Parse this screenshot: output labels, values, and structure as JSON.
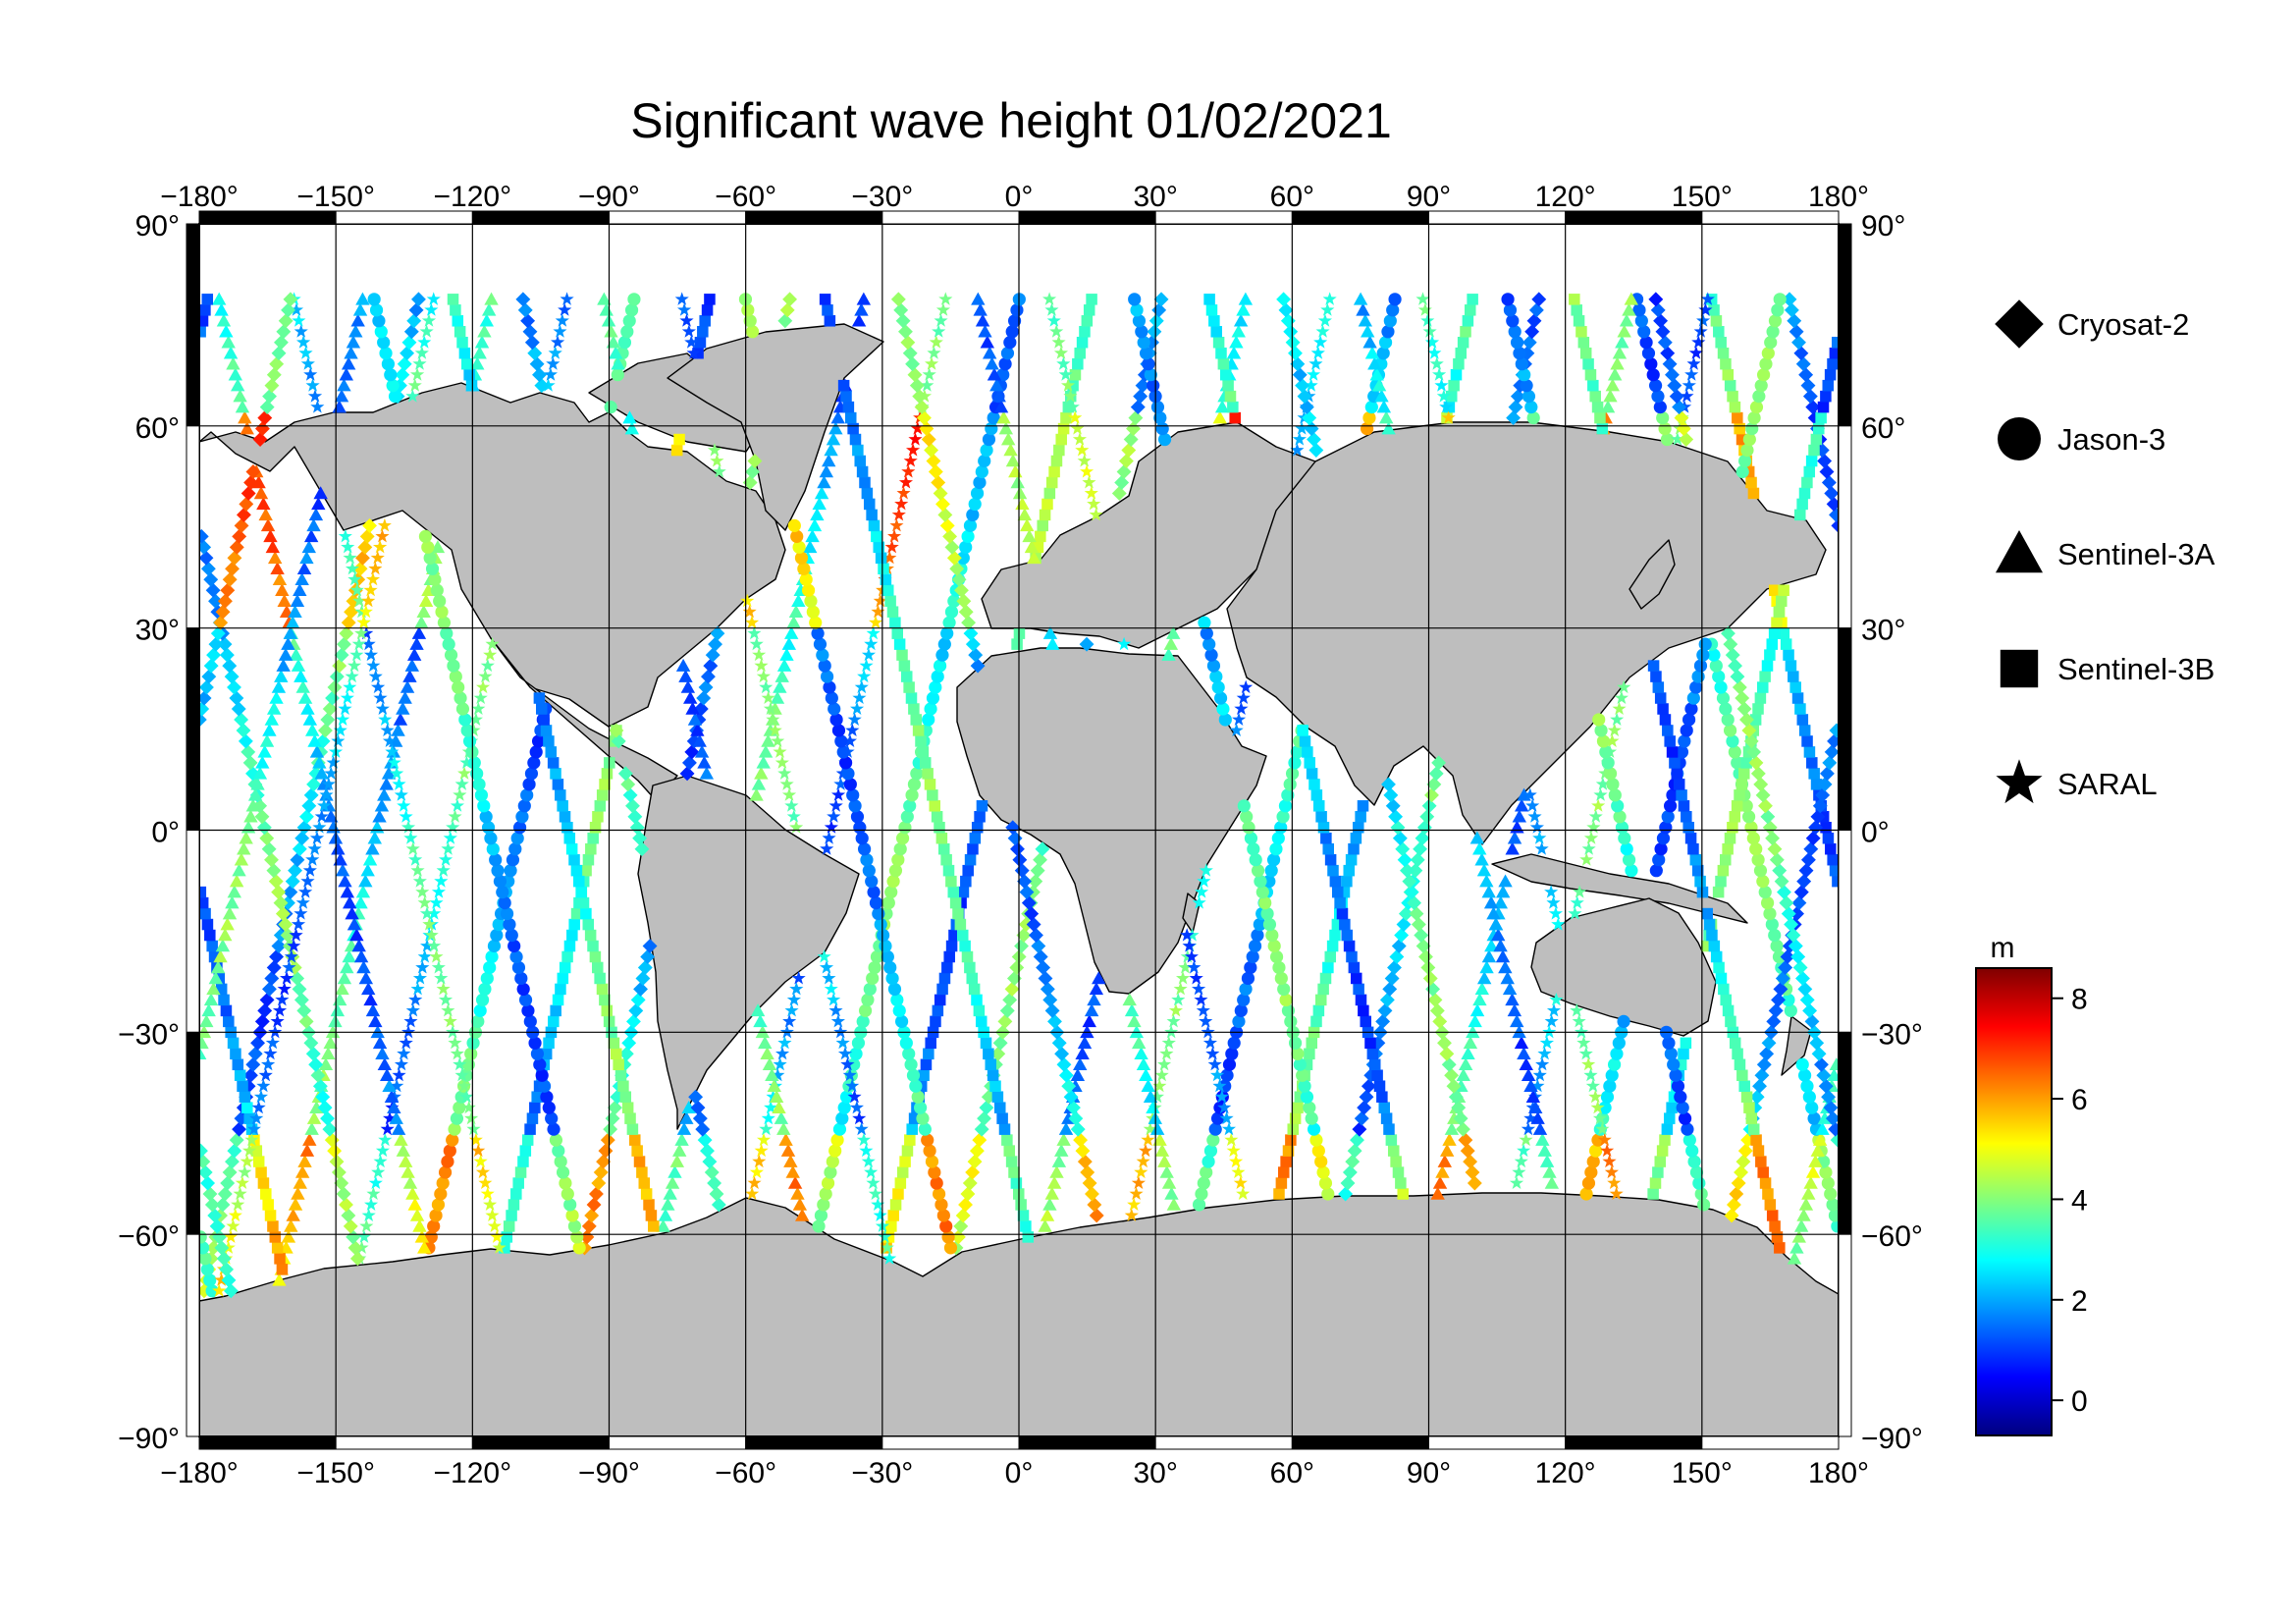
{
  "title": "Significant wave height 01/02/2021",
  "map": {
    "lon_ticks": [
      -180,
      -150,
      -120,
      -90,
      -60,
      -30,
      0,
      30,
      60,
      90,
      120,
      150,
      180
    ],
    "lat_ticks": [
      90,
      60,
      30,
      0,
      -30,
      -60,
      -90
    ],
    "lon_range": [
      -180,
      180
    ],
    "lat_range": [
      -90,
      90
    ],
    "degree_symbol": "°",
    "land_color": "#bebebe",
    "ocean_color": "#ffffff"
  },
  "legend": {
    "items": [
      {
        "label": "Cryosat-2",
        "marker": "diamond"
      },
      {
        "label": "Jason-3",
        "marker": "circle"
      },
      {
        "label": "Sentinel-3A",
        "marker": "triangle"
      },
      {
        "label": "Sentinel-3B",
        "marker": "square"
      },
      {
        "label": "SARAL",
        "marker": "star"
      }
    ]
  },
  "colorbar": {
    "unit": "m",
    "ticks": [
      0,
      2,
      4,
      6,
      8
    ],
    "range": [
      -0.7,
      8.6
    ],
    "colors": [
      "#00007f",
      "#0000ff",
      "#007fff",
      "#00ffff",
      "#7fff7f",
      "#ffff00",
      "#ff7f00",
      "#ff0000",
      "#7f0000"
    ]
  }
}
